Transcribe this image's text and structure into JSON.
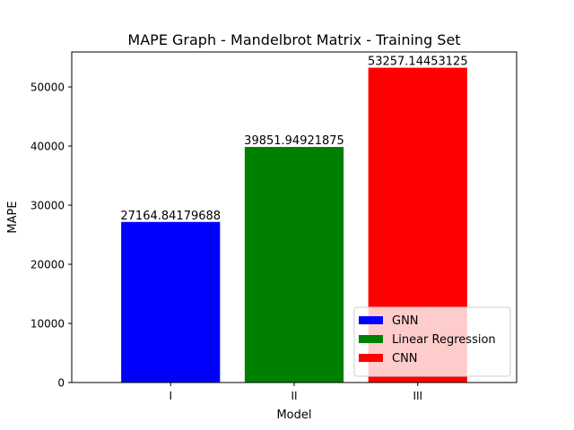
{
  "chart_data": {
    "type": "bar",
    "title": "MAPE Graph - Mandelbrot Matrix - Training Set",
    "xlabel": "Model",
    "ylabel": "MAPE",
    "categories": [
      "I",
      "II",
      "III"
    ],
    "values": [
      27164.84179688,
      39851.94921875,
      53257.14453125
    ],
    "value_labels": [
      "27164.84179688",
      "39851.94921875",
      "53257.14453125"
    ],
    "colors": [
      "#0000ff",
      "#008000",
      "#ff0000"
    ],
    "ylim": [
      0,
      55920
    ],
    "yticks": [
      0,
      10000,
      20000,
      30000,
      40000,
      50000
    ],
    "grid": false,
    "legend": {
      "position": "lower-right",
      "entries": [
        {
          "name": "GNN",
          "color": "#0000ff"
        },
        {
          "name": "Linear Regression",
          "color": "#008000"
        },
        {
          "name": "CNN",
          "color": "#ff0000"
        }
      ]
    }
  }
}
